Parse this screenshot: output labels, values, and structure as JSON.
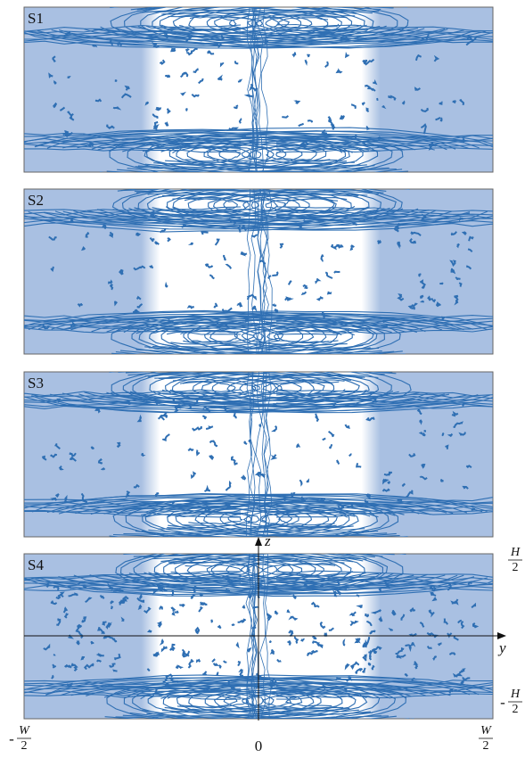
{
  "panels": [
    {
      "label": "S1"
    },
    {
      "label": "S2"
    },
    {
      "label": "S3"
    },
    {
      "label": "S4"
    }
  ],
  "axes": {
    "z_label": "z",
    "y_label": "y",
    "y_ticks": [
      {
        "sign": "-",
        "numerator": "W",
        "denominator": "2"
      },
      {
        "label": "0"
      },
      {
        "numerator": "W",
        "denominator": "2"
      }
    ],
    "z_ticks": [
      {
        "numerator": "H",
        "denominator": "2"
      },
      {
        "sign": "-",
        "numerator": "H",
        "denominator": "2"
      }
    ]
  }
}
